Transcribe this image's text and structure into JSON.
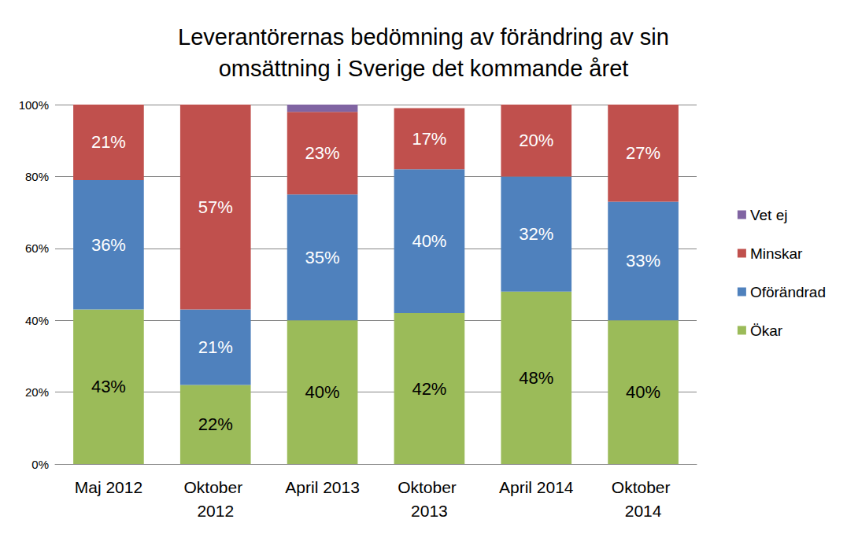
{
  "chart_data": {
    "type": "bar",
    "title": "Leverantörernas bedömning av förändring av sin\nomsättning i Sverige det kommande året",
    "categories": [
      "Maj 2012",
      "Oktober 2012",
      "April 2013",
      "Oktober 2013",
      "April 2014",
      "Oktober 2014"
    ],
    "series": [
      {
        "name": "Ökar",
        "color": "#9bbb59",
        "values": [
          43,
          22,
          40,
          42,
          48,
          40
        ],
        "value_labels": [
          "43%",
          "22%",
          "40%",
          "42%",
          "48%",
          "40%"
        ]
      },
      {
        "name": "Oförändrad",
        "color": "#4f81bd",
        "values": [
          36,
          21,
          35,
          40,
          32,
          33
        ],
        "value_labels": [
          "36%",
          "21%",
          "35%",
          "40%",
          "32%",
          "33%"
        ]
      },
      {
        "name": "Minskar",
        "color": "#c0504d",
        "values": [
          21,
          57,
          23,
          17,
          20,
          27
        ],
        "value_labels": [
          "21%",
          "57%",
          "23%",
          "17%",
          "20%",
          "27%"
        ]
      },
      {
        "name": "Vet ej",
        "color": "#8064a2",
        "values": [
          null,
          null,
          2,
          null,
          null,
          null
        ],
        "data_labels": false
      }
    ],
    "ylim": [
      0,
      100
    ],
    "yticks": [
      {
        "value": 0,
        "label": "0%"
      },
      {
        "value": 20,
        "label": "20%"
      },
      {
        "value": 40,
        "label": "40%"
      },
      {
        "value": 60,
        "label": "60%"
      },
      {
        "value": 80,
        "label": "80%"
      },
      {
        "value": 100,
        "label": "100%"
      }
    ],
    "stacked": true,
    "data_labels": true,
    "grid": true,
    "legend": "right"
  }
}
